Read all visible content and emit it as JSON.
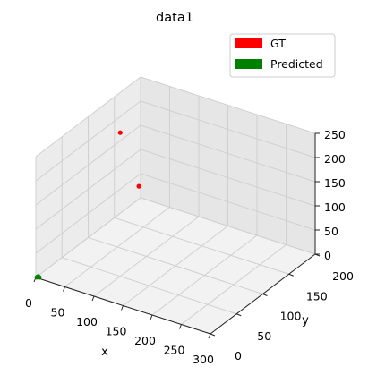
{
  "chart_data": {
    "type": "scatter",
    "projection": "3d",
    "title": "data1",
    "xlabel": "x",
    "ylabel": "y",
    "zlabel": "",
    "xlim": [
      0,
      300
    ],
    "ylim": [
      0,
      200
    ],
    "zlim": [
      0,
      250
    ],
    "x_ticks": [
      "0",
      "50",
      "100",
      "150",
      "200",
      "250",
      "300"
    ],
    "y_ticks": [
      "0",
      "50",
      "100",
      "150",
      "200"
    ],
    "z_ticks": [
      "0",
      "50",
      "100",
      "150",
      "200",
      "250"
    ],
    "grid": true,
    "legend_position": "top-right",
    "series": [
      {
        "name": "GT",
        "color": "#ff0000",
        "points": [
          {
            "x": 10,
            "y": 150,
            "z": 180
          },
          {
            "x": 60,
            "y": 130,
            "z": 105
          }
        ]
      },
      {
        "name": "Predicted",
        "color": "#008000",
        "points": [
          {
            "x": 1,
            "y": 1,
            "z": 0
          },
          {
            "x": 2,
            "y": 2,
            "z": 1
          },
          {
            "x": 3,
            "y": 1,
            "z": 2
          },
          {
            "x": 4,
            "y": 2,
            "z": 0
          }
        ]
      }
    ]
  }
}
